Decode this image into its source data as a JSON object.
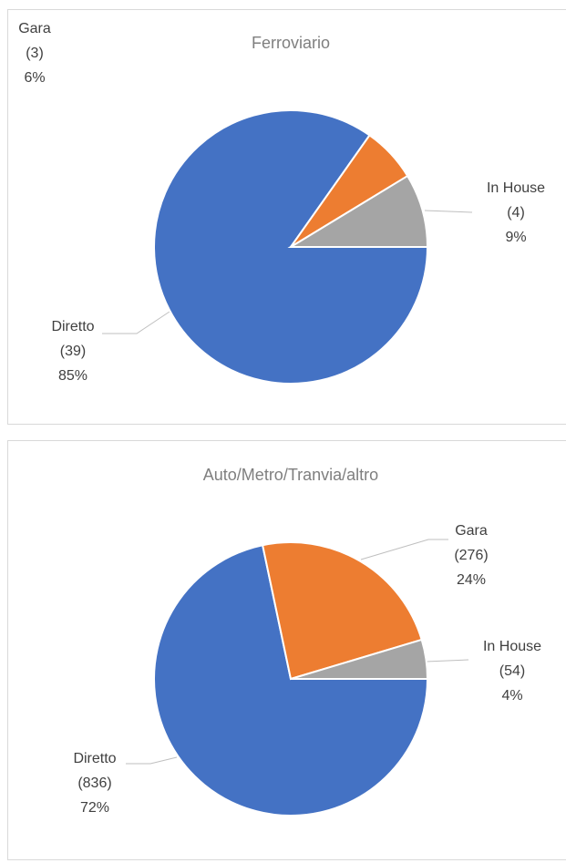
{
  "chart_data": [
    {
      "type": "pie",
      "title": "Ferroviario",
      "categories": [
        "Diretto",
        "Gara",
        "In House"
      ],
      "values": [
        39,
        3,
        4
      ],
      "value_labels": [
        "(39)",
        "(3)",
        "(4)"
      ],
      "percentages": [
        85,
        6,
        9
      ],
      "percentage_labels": [
        "85%",
        "6%",
        "9%"
      ],
      "colors": [
        "#4472c4",
        "#ed7d31",
        "#a5a5a5"
      ]
    },
    {
      "type": "pie",
      "title": "Auto/Metro/Tranvia/altro",
      "categories": [
        "Diretto",
        "Gara",
        "In House"
      ],
      "values": [
        836,
        276,
        54
      ],
      "value_labels": [
        "(836)",
        "(276)",
        "(54)"
      ],
      "percentages": [
        72,
        24,
        4
      ],
      "percentage_labels": [
        "72%",
        "24%",
        "4%"
      ],
      "colors": [
        "#4472c4",
        "#ed7d31",
        "#a5a5a5"
      ]
    }
  ]
}
